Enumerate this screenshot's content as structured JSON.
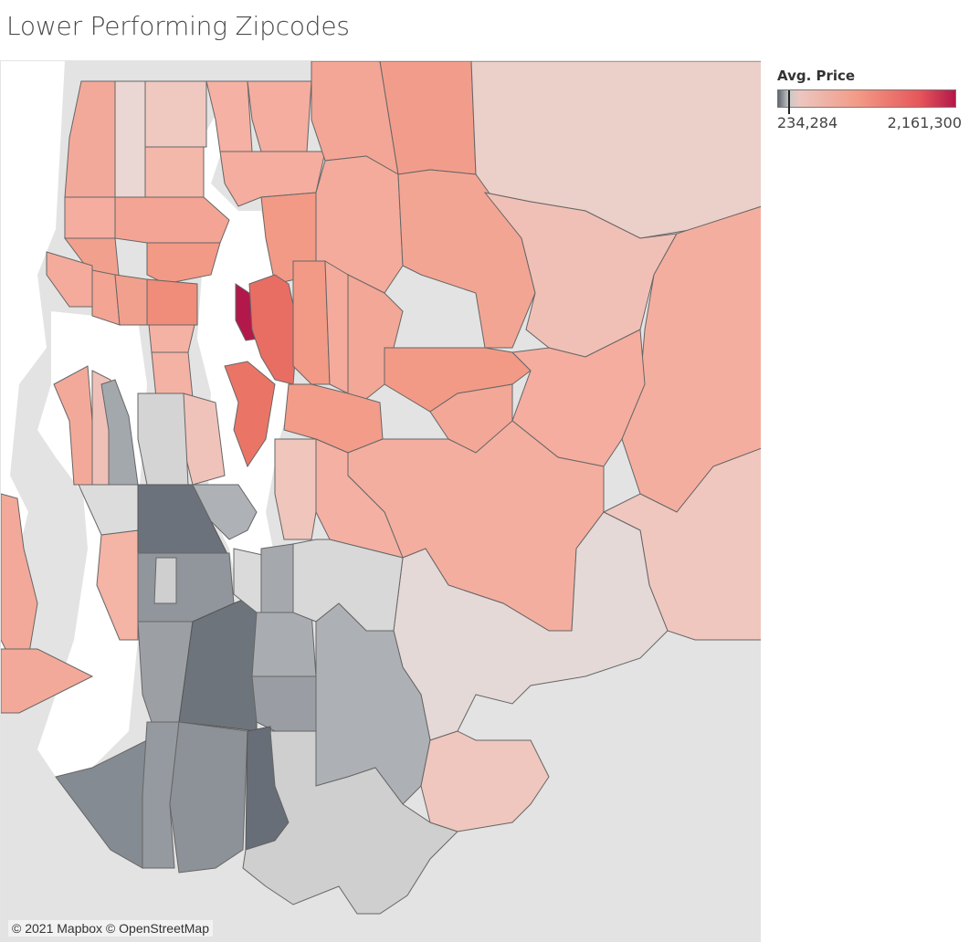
{
  "title": "Lower Performing Zipcodes",
  "legend": {
    "title": "Avg. Price",
    "min_label": "234,284",
    "max_label": "2,161,300",
    "min_value": 234284,
    "max_value": 2161300,
    "colors": [
      "#5f6670",
      "#c8c8c8",
      "#ecc6c0",
      "#f29a86",
      "#e6565a",
      "#b3184a"
    ]
  },
  "map": {
    "attribution": "© 2021 Mapbox © OpenStreetMap",
    "water_color": "#ffffff",
    "land_color": "#e3e3e3"
  }
}
